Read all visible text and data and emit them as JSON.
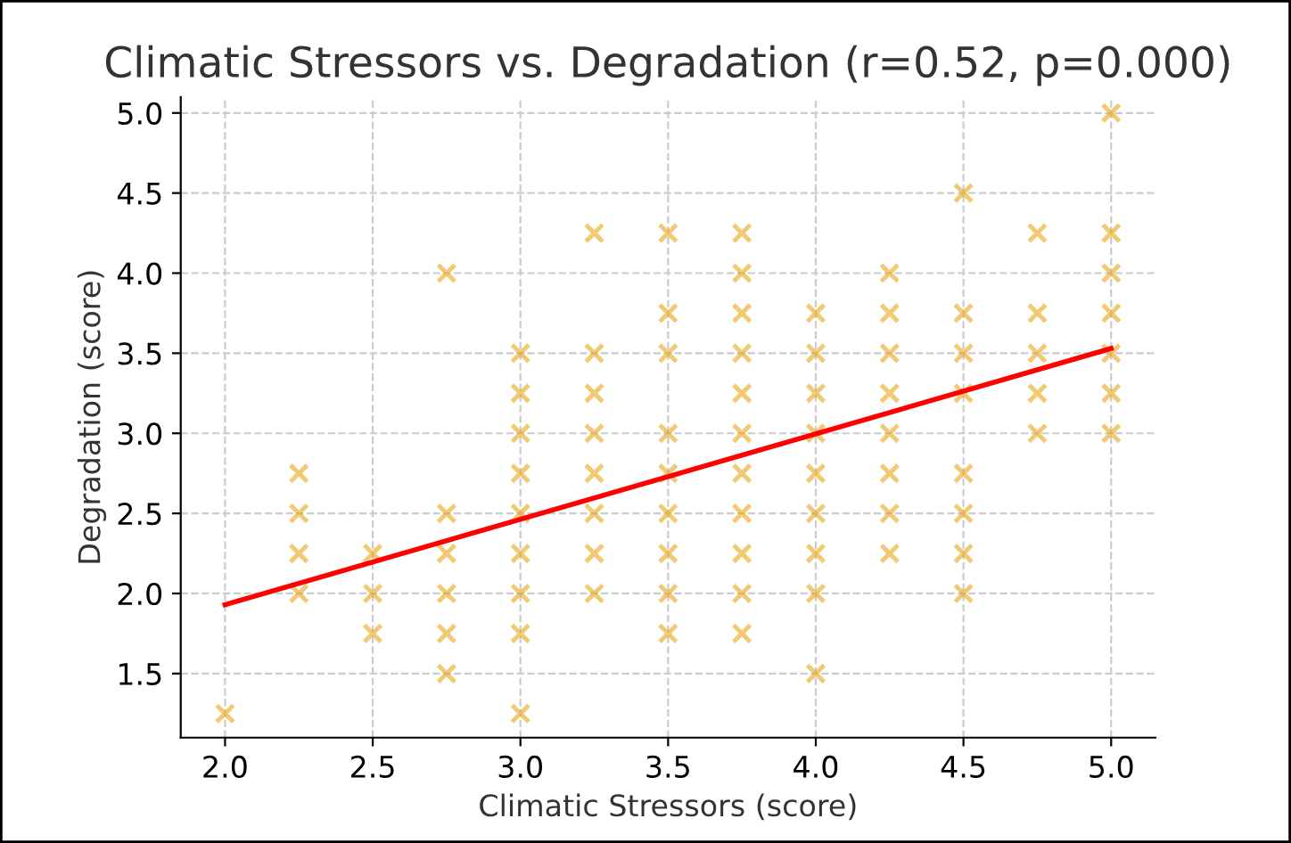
{
  "chart_data": {
    "type": "scatter",
    "title": "Climatic Stressors vs. Degradation (r=0.52, p=0.000)",
    "xlabel": "Climatic Stressors (score)",
    "ylabel": "Degradation (score)",
    "series": [
      {
        "color": "#e69f00",
        "marker": "cross",
        "x": [
          2.0,
          2.25,
          2.25,
          2.25,
          2.25,
          2.5,
          2.5,
          2.5,
          2.75,
          2.75,
          2.75,
          2.75,
          2.75,
          2.75,
          3.0,
          3.0,
          3.0,
          3.0,
          3.0,
          3.0,
          3.0,
          3.0,
          3.0,
          3.25,
          3.25,
          3.25,
          3.25,
          3.25,
          3.25,
          3.25,
          3.25,
          3.5,
          3.5,
          3.5,
          3.5,
          3.5,
          3.5,
          3.5,
          3.5,
          3.5,
          3.75,
          3.75,
          3.75,
          3.75,
          3.75,
          3.75,
          3.75,
          3.75,
          3.75,
          3.75,
          3.75,
          4.0,
          4.0,
          4.0,
          4.0,
          4.0,
          4.0,
          4.0,
          4.0,
          4.0,
          4.25,
          4.25,
          4.25,
          4.25,
          4.25,
          4.25,
          4.25,
          4.25,
          4.5,
          4.5,
          4.5,
          4.5,
          4.5,
          4.5,
          4.5,
          4.5,
          4.75,
          4.75,
          4.75,
          4.75,
          4.75,
          5.0,
          5.0,
          5.0,
          5.0,
          5.0,
          5.0,
          5.0
        ],
        "values": [
          1.25,
          2.0,
          2.25,
          2.5,
          2.75,
          1.75,
          2.0,
          2.25,
          1.5,
          1.75,
          2.0,
          2.25,
          2.5,
          4.0,
          1.25,
          1.75,
          2.0,
          2.25,
          2.5,
          2.75,
          3.0,
          3.25,
          3.5,
          2.0,
          2.25,
          2.5,
          2.75,
          3.0,
          3.25,
          3.5,
          4.25,
          1.75,
          2.0,
          2.25,
          2.5,
          2.75,
          3.0,
          3.5,
          3.75,
          4.25,
          1.75,
          2.0,
          2.25,
          2.5,
          2.75,
          3.0,
          3.25,
          3.5,
          3.75,
          4.0,
          4.25,
          1.5,
          2.0,
          2.25,
          2.5,
          2.75,
          3.0,
          3.25,
          3.5,
          3.75,
          2.25,
          2.5,
          2.75,
          3.0,
          3.25,
          3.5,
          3.75,
          4.0,
          2.0,
          2.25,
          2.5,
          2.75,
          3.25,
          3.5,
          3.75,
          4.5,
          3.0,
          3.25,
          3.5,
          3.75,
          4.25,
          3.0,
          3.25,
          3.5,
          3.75,
          4.0,
          4.25,
          5.0
        ]
      },
      {
        "type": "line",
        "color": "#ff0000",
        "marker": "none",
        "line_style": "solid",
        "x": [
          2.0,
          5.0
        ],
        "values": [
          1.93,
          3.53
        ]
      }
    ],
    "xlim": [
      1.85,
      5.15
    ],
    "ylim": [
      1.1,
      5.1
    ],
    "xticks": [
      {
        "value": 2,
        "label": "2.0"
      },
      {
        "value": 2.5,
        "label": "2.5"
      },
      {
        "value": 3,
        "label": "3.0"
      },
      {
        "value": 3.5,
        "label": "3.5"
      },
      {
        "value": 4,
        "label": "4.0"
      },
      {
        "value": 4.5,
        "label": "4.5"
      },
      {
        "value": 5,
        "label": "5.0"
      }
    ],
    "yticks": [
      {
        "value": 1.5,
        "label": "1.5"
      },
      {
        "value": 2,
        "label": "2.0"
      },
      {
        "value": 2.5,
        "label": "2.5"
      },
      {
        "value": 3,
        "label": "3.0"
      },
      {
        "value": 3.5,
        "label": "3.5"
      },
      {
        "value": 4,
        "label": "4.0"
      },
      {
        "value": 4.5,
        "label": "4.5"
      },
      {
        "value": 5,
        "label": "5.0"
      }
    ],
    "grid": true
  }
}
